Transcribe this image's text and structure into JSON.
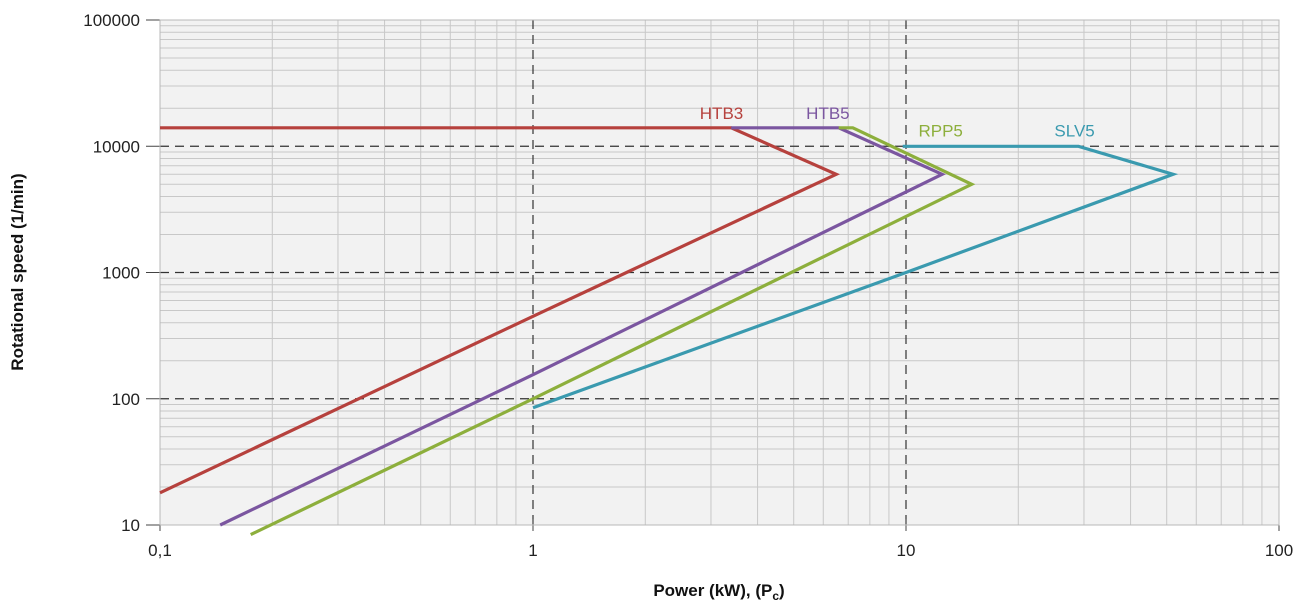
{
  "chart_data": {
    "type": "line",
    "title": "",
    "xlabel": "Power (kW), (P",
    "xlabel_sub": "c",
    "xlabel_end": ")",
    "ylabel": "Rotational speed (1/min)",
    "x_scale": "log",
    "y_scale": "log",
    "xlim": [
      0.1,
      100
    ],
    "ylim": [
      10,
      100000
    ],
    "x_ticks": [
      {
        "value": 0.1,
        "label": "0,1"
      },
      {
        "value": 1,
        "label": "1"
      },
      {
        "value": 10,
        "label": "10"
      },
      {
        "value": 100,
        "label": "100"
      }
    ],
    "y_ticks": [
      {
        "value": 10,
        "label": "10"
      },
      {
        "value": 100,
        "label": "100"
      },
      {
        "value": 1000,
        "label": "1000"
      },
      {
        "value": 10000,
        "label": "10000"
      },
      {
        "value": 100000,
        "label": "100000"
      }
    ],
    "grid": true,
    "background": "#f2f2f2",
    "series": [
      {
        "name": "HTB3",
        "color": "#b6413d",
        "label_at": [
          2.8,
          16500
        ],
        "points": [
          [
            0.1,
            14000
          ],
          [
            3.4,
            14000
          ],
          [
            6.5,
            6000
          ],
          [
            1.0,
            450
          ],
          [
            0.1,
            18
          ]
        ]
      },
      {
        "name": "HTB5",
        "color": "#7b56a0",
        "label_at": [
          5.4,
          16500
        ],
        "points": [
          [
            3.4,
            14000
          ],
          [
            6.6,
            14000
          ],
          [
            12.5,
            6000
          ],
          [
            1.0,
            155
          ],
          [
            0.145,
            10
          ]
        ]
      },
      {
        "name": "RPP5",
        "color": "#8daf3c",
        "label_at": [
          10.8,
          12000
        ],
        "points": [
          [
            6.6,
            14000
          ],
          [
            7.2,
            14000
          ],
          [
            15.0,
            5000
          ],
          [
            1.0,
            100
          ],
          [
            0.175,
            8.4
          ]
        ]
      },
      {
        "name": "SLV5",
        "color": "#3a9aaf",
        "label_at": [
          25.0,
          12000
        ],
        "points": [
          [
            9.8,
            10000
          ],
          [
            29.0,
            10000
          ],
          [
            52.0,
            6000
          ],
          [
            10.0,
            1000
          ],
          [
            1.0,
            85
          ]
        ]
      }
    ]
  }
}
